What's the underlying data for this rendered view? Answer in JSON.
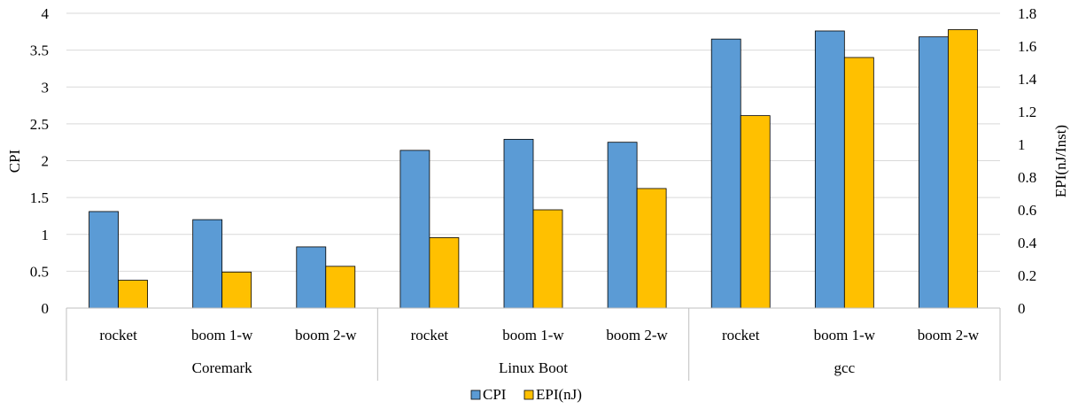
{
  "chart_data": {
    "type": "bar",
    "groups": [
      {
        "label": "Coremark",
        "categories": [
          "rocket",
          "boom 1-w",
          "boom 2-w"
        ]
      },
      {
        "label": "Linux Boot",
        "categories": [
          "rocket",
          "boom 1-w",
          "boom 2-w"
        ]
      },
      {
        "label": "gcc",
        "categories": [
          "rocket",
          "boom 1-w",
          "boom 2-w"
        ]
      }
    ],
    "series": [
      {
        "name": "CPI",
        "axis": "left",
        "color": "#5B9BD5",
        "values": [
          1.31,
          1.2,
          0.83,
          2.14,
          2.29,
          2.25,
          3.65,
          3.76,
          3.68
        ]
      },
      {
        "name": "EPI(nJ)",
        "axis": "right",
        "color": "#FFC000",
        "values": [
          0.17,
          0.22,
          0.255,
          0.43,
          0.6,
          0.73,
          1.175,
          1.53,
          1.7
        ]
      }
    ],
    "ylabel_left": "CPI",
    "ylabel_right": "EPI(nJ/Inst)",
    "ylim_left": [
      0,
      4
    ],
    "yticks_left": [
      "0",
      "0.5",
      "1",
      "1.5",
      "2",
      "2.5",
      "3",
      "3.5",
      "4"
    ],
    "ylim_right": [
      0,
      1.8
    ],
    "yticks_right": [
      "0",
      "0.2",
      "0.4",
      "0.6",
      "0.8",
      "1",
      "1.2",
      "1.4",
      "1.6",
      "1.8"
    ],
    "grid": true,
    "legend_position": "bottom-center"
  }
}
